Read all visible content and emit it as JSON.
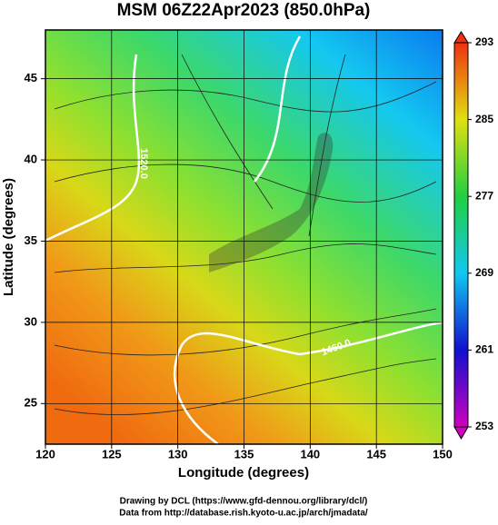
{
  "chart_data": {
    "type": "map",
    "title": "MSM 06Z22Apr2023 (850.0hPa)",
    "x_label": "Longitude (degrees)",
    "y_label": "Latitude  (degrees)",
    "xlim": [
      120,
      150
    ],
    "ylim": [
      22.5,
      48
    ],
    "xticks": [
      120,
      125,
      130,
      135,
      140,
      145,
      150
    ],
    "yticks": [
      25,
      30,
      35,
      40,
      45
    ],
    "grid": true,
    "colorbar": {
      "lim": [
        253,
        293
      ],
      "ticks": [
        253,
        261,
        269,
        277,
        285,
        293
      ]
    },
    "contour_labels": [
      "1520.0",
      "1460.0"
    ],
    "credits": [
      "Drawing by DCL (https://www.gfd-dennou.org/library/dcl/)",
      "Data from http://database.rish.kyoto-u.ac.jp/arch/jmadata/"
    ]
  }
}
